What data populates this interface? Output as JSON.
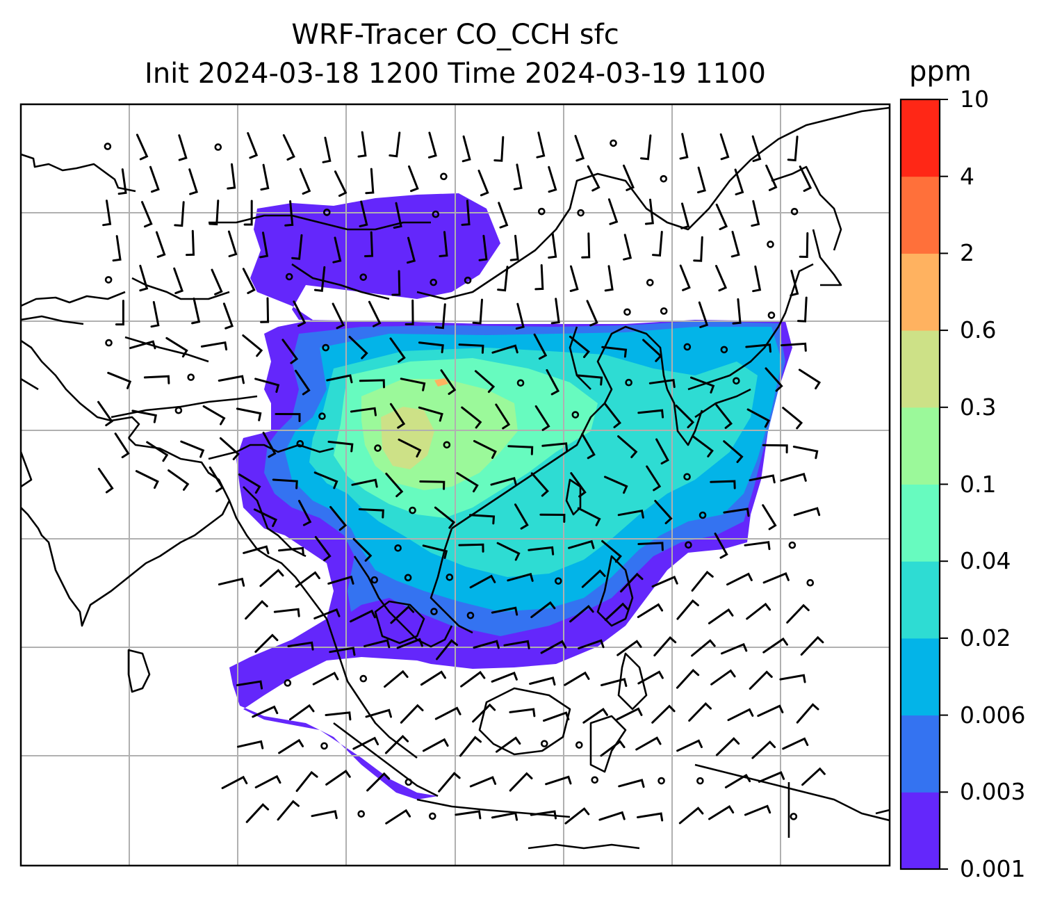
{
  "title_line1": "WRF-Tracer CO_CCH sfc",
  "title_line2": "Init 2024-03-18 1200 Time 2024-03-19 1100",
  "colorbar": {
    "unit": "ppm",
    "levels": [
      "0.001",
      "0.003",
      "0.006",
      "0.02",
      "0.04",
      "0.1",
      "0.3",
      "0.6",
      "2",
      "4",
      "10"
    ],
    "colors": [
      "#6427fb",
      "#3473f1",
      "#03b4e8",
      "#2edcd3",
      "#67fbbf",
      "#9bf99a",
      "#cde187",
      "#ffb260",
      "#ff703a",
      "#ff2716"
    ]
  },
  "map": {
    "frame_color": "#000000",
    "gridline_color": "#b0b0b0",
    "coastline_color": "#000000",
    "wind_barb_color": "#000000"
  }
}
